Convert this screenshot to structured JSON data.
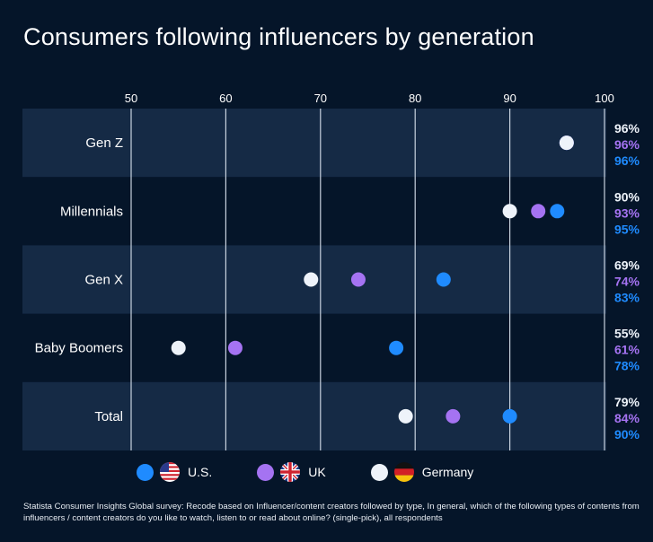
{
  "title": "Consumers following influencers by generation",
  "footnote": "Statista Consumer Insights Global survey: Recode based on Influencer/content creators followed by type, In general, which of the following types of contents from influencers / content creators do you like to watch, listen to or read about online? (single-pick), all respondents",
  "legend": {
    "us_label": "U.S.",
    "uk_label": "UK",
    "de_label": "Germany"
  },
  "colors": {
    "background": "#051529",
    "band": "#152a45",
    "us": "#1f8bff",
    "uk": "#a573f2",
    "germany": "#eef3fa",
    "gridline": "#c9d3df"
  },
  "chart_data": {
    "type": "scatter",
    "title": "Consumers following influencers by generation",
    "categories": [
      "Gen Z",
      "Millennials",
      "Gen X",
      "Baby Boomers",
      "Total"
    ],
    "xlim": [
      50,
      100
    ],
    "x_ticks": [
      50,
      60,
      70,
      80,
      90,
      100
    ],
    "x_unit": "%",
    "series": [
      {
        "name": "Germany",
        "color": "#eef3fa",
        "values": [
          96,
          90,
          69,
          55,
          79
        ]
      },
      {
        "name": "UK",
        "color": "#a573f2",
        "values": [
          96,
          93,
          74,
          61,
          84
        ]
      },
      {
        "name": "U.S.",
        "color": "#1f8bff",
        "values": [
          96,
          95,
          83,
          78,
          90
        ]
      }
    ],
    "grid": true,
    "legend_position": "bottom"
  }
}
